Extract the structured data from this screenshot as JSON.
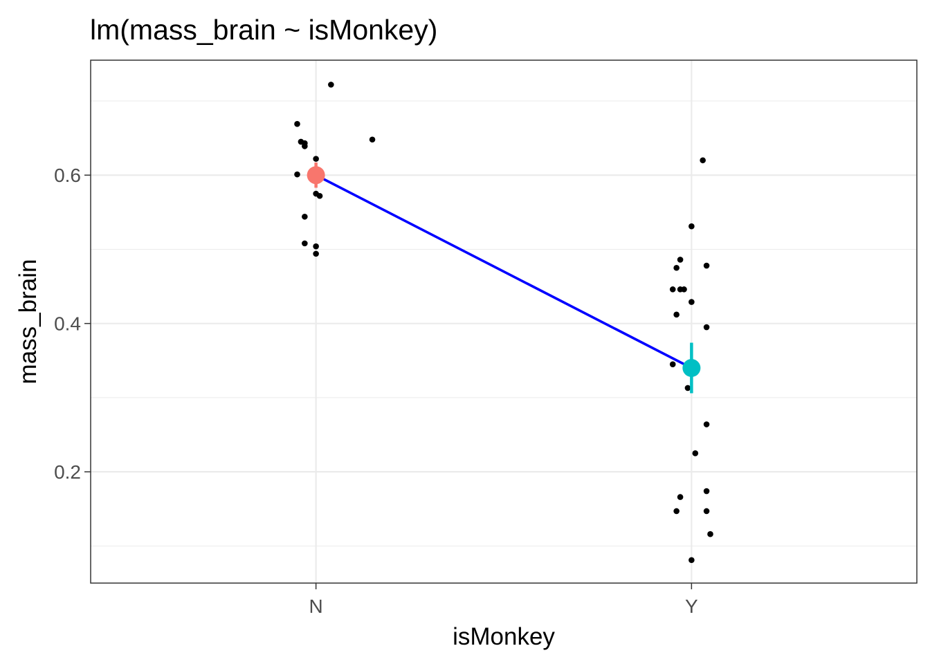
{
  "chart_data": {
    "type": "scatter",
    "title": "lm(mass_brain ~ isMonkey)",
    "xlabel": "isMonkey",
    "ylabel": "mass_brain",
    "categories": [
      "N",
      "Y"
    ],
    "ylim": [
      0.05,
      0.755
    ],
    "yticks": [
      0.2,
      0.4,
      0.6
    ],
    "yticks_minor": [
      0.1,
      0.3,
      0.5,
      0.7
    ],
    "ytick_labels": [
      "0.2",
      "0.4",
      "0.6"
    ],
    "grid": true,
    "legend": "none",
    "points": [
      {
        "x": "N",
        "jitter": 0.15,
        "y": 0.648
      },
      {
        "x": "N",
        "jitter": -0.05,
        "y": 0.669
      },
      {
        "x": "N",
        "jitter": -0.04,
        "y": 0.645
      },
      {
        "x": "N",
        "jitter": -0.03,
        "y": 0.643
      },
      {
        "x": "N",
        "jitter": -0.03,
        "y": 0.639
      },
      {
        "x": "N",
        "jitter": 0.04,
        "y": 0.722
      },
      {
        "x": "N",
        "jitter": 0.0,
        "y": 0.622
      },
      {
        "x": "N",
        "jitter": -0.05,
        "y": 0.601
      },
      {
        "x": "N",
        "jitter": 0.0,
        "y": 0.575
      },
      {
        "x": "N",
        "jitter": 0.01,
        "y": 0.572
      },
      {
        "x": "N",
        "jitter": -0.03,
        "y": 0.544
      },
      {
        "x": "N",
        "jitter": -0.03,
        "y": 0.508
      },
      {
        "x": "N",
        "jitter": 0.0,
        "y": 0.504
      },
      {
        "x": "N",
        "jitter": 0.0,
        "y": 0.494
      },
      {
        "x": "Y",
        "jitter": 0.03,
        "y": 0.62
      },
      {
        "x": "Y",
        "jitter": 0.0,
        "y": 0.531
      },
      {
        "x": "Y",
        "jitter": -0.03,
        "y": 0.486
      },
      {
        "x": "Y",
        "jitter": -0.04,
        "y": 0.475
      },
      {
        "x": "Y",
        "jitter": 0.04,
        "y": 0.478
      },
      {
        "x": "Y",
        "jitter": -0.05,
        "y": 0.446
      },
      {
        "x": "Y",
        "jitter": -0.03,
        "y": 0.446
      },
      {
        "x": "Y",
        "jitter": -0.02,
        "y": 0.446
      },
      {
        "x": "Y",
        "jitter": 0.0,
        "y": 0.429
      },
      {
        "x": "Y",
        "jitter": -0.04,
        "y": 0.412
      },
      {
        "x": "Y",
        "jitter": 0.04,
        "y": 0.395
      },
      {
        "x": "Y",
        "jitter": -0.05,
        "y": 0.345
      },
      {
        "x": "Y",
        "jitter": -0.01,
        "y": 0.313
      },
      {
        "x": "Y",
        "jitter": 0.04,
        "y": 0.264
      },
      {
        "x": "Y",
        "jitter": 0.01,
        "y": 0.225
      },
      {
        "x": "Y",
        "jitter": 0.04,
        "y": 0.174
      },
      {
        "x": "Y",
        "jitter": -0.03,
        "y": 0.166
      },
      {
        "x": "Y",
        "jitter": -0.04,
        "y": 0.147
      },
      {
        "x": "Y",
        "jitter": 0.04,
        "y": 0.147
      },
      {
        "x": "Y",
        "jitter": 0.05,
        "y": 0.116
      },
      {
        "x": "Y",
        "jitter": 0.0,
        "y": 0.081
      }
    ],
    "group_estimates": [
      {
        "x": "N",
        "mean": 0.6,
        "lower": 0.583,
        "upper": 0.617,
        "color": "#f8766d"
      },
      {
        "x": "Y",
        "mean": 0.34,
        "lower": 0.306,
        "upper": 0.374,
        "color": "#00bfc4"
      }
    ],
    "fit_line": {
      "color": "#0000ff",
      "from": {
        "x": "N",
        "y": 0.6
      },
      "to": {
        "x": "Y",
        "y": 0.34
      }
    }
  }
}
